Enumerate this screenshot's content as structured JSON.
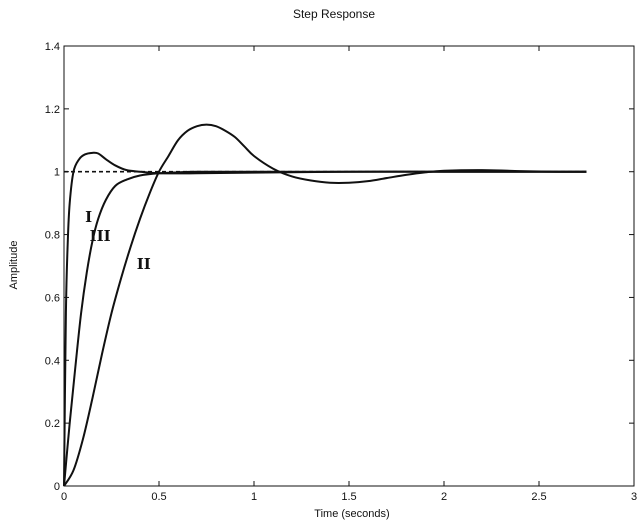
{
  "chart_data": {
    "type": "line",
    "title": "Step Response",
    "xlabel": "Time (seconds)",
    "ylabel": "Amplitude",
    "xlim": [
      0,
      3
    ],
    "ylim": [
      0,
      1.4
    ],
    "xticks": [
      0,
      0.5,
      1,
      1.5,
      2,
      2.5,
      3
    ],
    "xtick_labels": [
      "0",
      "0.5",
      "1",
      "1.5",
      "2",
      "2.5",
      "3"
    ],
    "yticks": [
      0,
      0.2,
      0.4,
      0.6,
      0.8,
      1,
      1.2,
      1.4
    ],
    "ytick_labels": [
      "0",
      "0.2",
      "0.4",
      "0.6",
      "0.8",
      "1",
      "1.2",
      "1.4"
    ],
    "grid": false,
    "reference_line": {
      "y": 1,
      "style": "dashed",
      "x": [
        0,
        2.75
      ]
    },
    "series": [
      {
        "name": "I",
        "label_at": [
          0.13,
          0.84
        ],
        "x": [
          0,
          0.01,
          0.02,
          0.03,
          0.05,
          0.08,
          0.11,
          0.15,
          0.18,
          0.22,
          0.27,
          0.33,
          0.4,
          0.5,
          0.7,
          1.0,
          1.5,
          2.0,
          2.5,
          2.75
        ],
        "y": [
          0,
          0.55,
          0.78,
          0.9,
          1.0,
          1.04,
          1.055,
          1.06,
          1.058,
          1.04,
          1.02,
          1.005,
          1.0,
          0.995,
          0.995,
          0.997,
          1.0,
          1.0,
          1.0,
          1.0
        ]
      },
      {
        "name": "II",
        "label_at": [
          0.42,
          0.69
        ],
        "x": [
          0,
          0.05,
          0.1,
          0.15,
          0.2,
          0.25,
          0.3,
          0.35,
          0.4,
          0.45,
          0.5,
          0.55,
          0.6,
          0.65,
          0.7,
          0.75,
          0.8,
          0.85,
          0.9,
          0.95,
          1.0,
          1.1,
          1.2,
          1.3,
          1.4,
          1.5,
          1.6,
          1.7,
          1.8,
          1.9,
          2.0,
          2.2,
          2.4,
          2.6,
          2.75
        ],
        "y": [
          0,
          0.05,
          0.15,
          0.28,
          0.42,
          0.55,
          0.66,
          0.76,
          0.85,
          0.93,
          1.0,
          1.05,
          1.1,
          1.13,
          1.145,
          1.15,
          1.145,
          1.13,
          1.11,
          1.08,
          1.05,
          1.01,
          0.985,
          0.972,
          0.965,
          0.965,
          0.97,
          0.98,
          0.99,
          0.998,
          1.003,
          1.005,
          1.002,
          1.0,
          1.0
        ]
      },
      {
        "name": "III",
        "label_at": [
          0.19,
          0.78
        ],
        "x": [
          0,
          0.03,
          0.06,
          0.09,
          0.12,
          0.15,
          0.18,
          0.22,
          0.27,
          0.33,
          0.4,
          0.5,
          0.6,
          0.7,
          1.0,
          1.5,
          2.0,
          2.5,
          2.75
        ],
        "y": [
          0,
          0.2,
          0.38,
          0.55,
          0.68,
          0.78,
          0.85,
          0.91,
          0.955,
          0.975,
          0.988,
          0.995,
          0.998,
          1.0,
          1.0,
          1.0,
          1.0,
          1.0,
          1.0
        ]
      }
    ]
  }
}
